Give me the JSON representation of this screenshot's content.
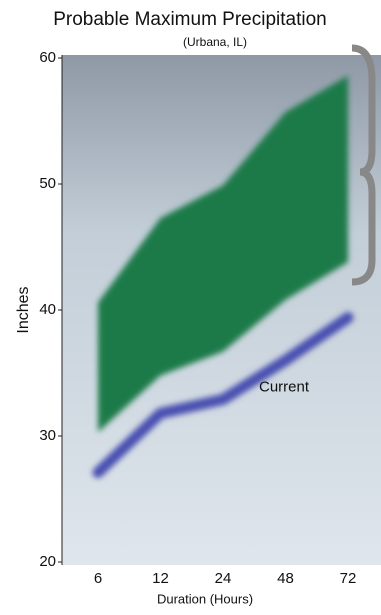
{
  "chart_data": {
    "type": "line",
    "title": "Probable Maximum Precipitation",
    "subtitle": "(Urbana, IL)",
    "x_label": "Duration (Hours)",
    "y_label": "Inches",
    "categories": [
      "6",
      "12",
      "24",
      "48",
      "72"
    ],
    "band": {
      "color": "#1e7a48",
      "high": [
        40.6,
        47.3,
        49.9,
        55.7,
        58.6
      ],
      "low": [
        30.3,
        34.8,
        36.7,
        40.8,
        43.8
      ]
    },
    "series": [
      {
        "name": "Current",
        "color": "#4a4fb0",
        "values": [
          27.1,
          31.8,
          32.9,
          36.0,
          39.4
        ]
      }
    ],
    "ylim": [
      20,
      60
    ],
    "yticks": [
      20,
      30,
      40,
      50,
      60
    ]
  }
}
